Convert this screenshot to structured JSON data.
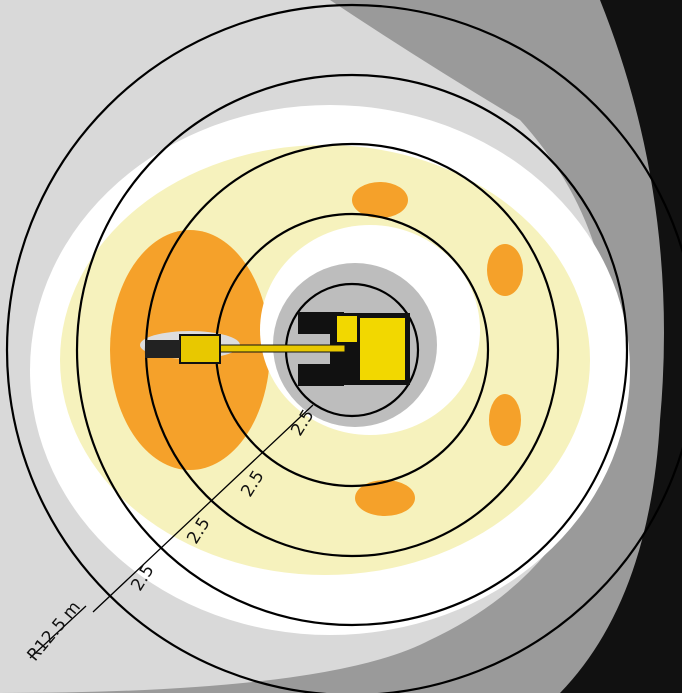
{
  "dimensions": [
    {
      "label": "2.5"
    },
    {
      "label": "2.5"
    },
    {
      "label": "2.5"
    },
    {
      "label": "2.5"
    }
  ],
  "radius_label": "R12.5 m"
}
